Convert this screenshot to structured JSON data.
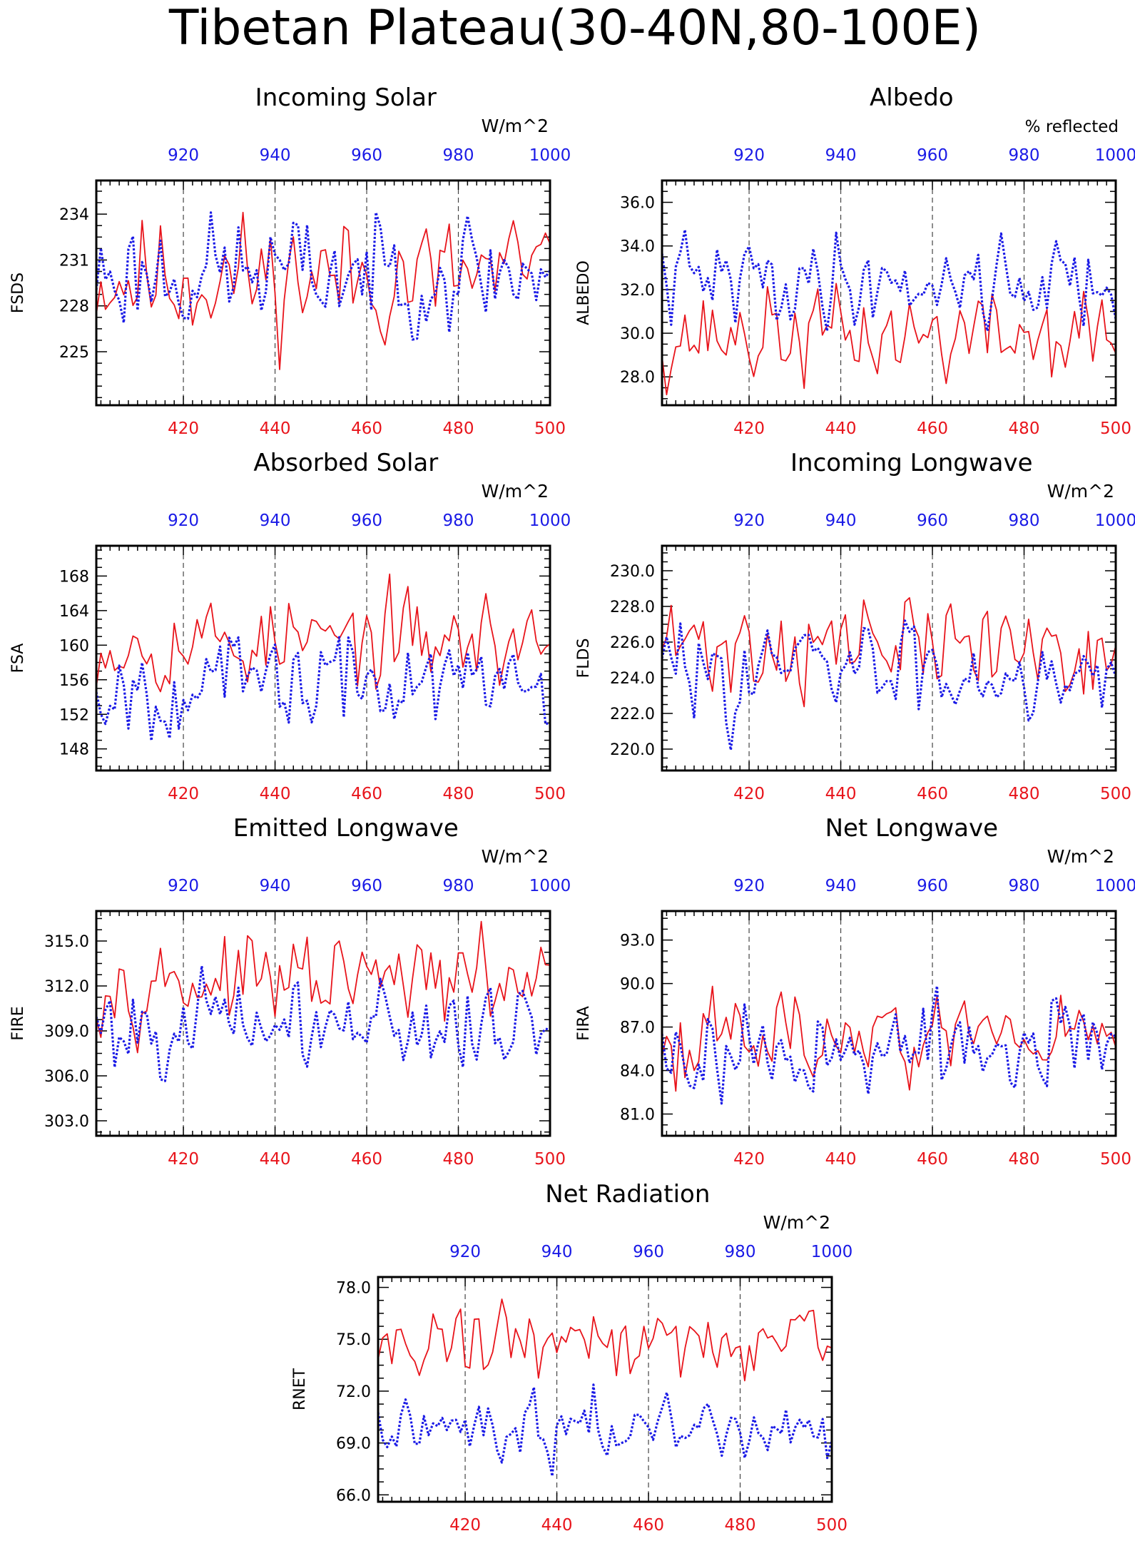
{
  "figure_title": "Tibetan Plateau(30-40N,80-100E)",
  "colors": {
    "red_series": "#e8141b",
    "blue_series": "#1a1ae6",
    "axis": "#000000"
  },
  "chart_data": [
    {
      "type": "line",
      "title": "Incoming Solar",
      "units": "W/m^2",
      "ylabel": "FSDS",
      "x_bottom": {
        "range": [
          401,
          500
        ],
        "ticks": [
          420,
          440,
          460,
          480,
          500
        ],
        "color": "red"
      },
      "x_top": {
        "range": [
          901,
          1000
        ],
        "ticks": [
          920,
          940,
          960,
          980,
          1000
        ],
        "color": "blue"
      },
      "ylim": [
        221.5,
        236.2
      ],
      "yticks": [
        225,
        228,
        231,
        234
      ],
      "ytick_labels": [
        "225",
        "228",
        "231",
        "234"
      ],
      "series": [
        {
          "color": "red",
          "style": "solid",
          "mean": 229.9,
          "amp": 2.6,
          "seed": 11,
          "lo": 223.0,
          "hi": 235.0
        },
        {
          "color": "blue",
          "style": "dotted",
          "mean": 230.2,
          "amp": 2.4,
          "seed": 23,
          "lo": 225.8,
          "hi": 235.3
        }
      ]
    },
    {
      "type": "line",
      "title": "Albedo",
      "units": "% reflected",
      "ylabel": "ALBEDO",
      "x_bottom": {
        "range": [
          401,
          500
        ],
        "ticks": [
          420,
          440,
          460,
          480,
          500
        ],
        "color": "red"
      },
      "x_top": {
        "range": [
          901,
          1000
        ],
        "ticks": [
          920,
          940,
          960,
          980,
          1000
        ],
        "color": "blue"
      },
      "ylim": [
        26.7,
        37.0
      ],
      "yticks": [
        28,
        30,
        32,
        34,
        36
      ],
      "ytick_labels": [
        "28.0",
        "30.0",
        "32.0",
        "34.0",
        "36.0"
      ],
      "series": [
        {
          "color": "red",
          "style": "solid",
          "mean": 29.9,
          "amp": 1.4,
          "seed": 37,
          "lo": 27.1,
          "hi": 32.6
        },
        {
          "color": "blue",
          "style": "dotted",
          "mean": 32.4,
          "amp": 1.3,
          "seed": 41,
          "lo": 30.1,
          "hi": 36.4
        }
      ]
    },
    {
      "type": "line",
      "title": "Absorbed Solar",
      "units": "W/m^2",
      "ylabel": "FSA",
      "x_bottom": {
        "range": [
          401,
          500
        ],
        "ticks": [
          420,
          440,
          460,
          480,
          500
        ],
        "color": "red"
      },
      "x_top": {
        "range": [
          901,
          1000
        ],
        "ticks": [
          920,
          940,
          960,
          980,
          1000
        ],
        "color": "blue"
      },
      "ylim": [
        145.5,
        171.5
      ],
      "yticks": [
        148,
        152,
        156,
        160,
        164,
        168
      ],
      "ytick_labels": [
        "148",
        "152",
        "156",
        "160",
        "164",
        "168"
      ],
      "series": [
        {
          "color": "red",
          "style": "solid",
          "mean": 160.5,
          "amp": 3.4,
          "seed": 53,
          "lo": 153.5,
          "hi": 170.0
        },
        {
          "color": "blue",
          "style": "dotted",
          "mean": 155.6,
          "amp": 3.6,
          "seed": 67,
          "lo": 147.3,
          "hi": 162.5
        }
      ]
    },
    {
      "type": "line",
      "title": "Incoming Longwave",
      "units": "W/m^2",
      "ylabel": "FLDS",
      "x_bottom": {
        "range": [
          401,
          500
        ],
        "ticks": [
          420,
          440,
          460,
          480,
          500
        ],
        "color": "red"
      },
      "x_top": {
        "range": [
          901,
          1000
        ],
        "ticks": [
          920,
          940,
          960,
          980,
          1000
        ],
        "color": "blue"
      },
      "ylim": [
        218.8,
        231.4
      ],
      "yticks": [
        220,
        222,
        224,
        226,
        228,
        230
      ],
      "ytick_labels": [
        "220.0",
        "222.0",
        "224.0",
        "226.0",
        "228.0",
        "230.0"
      ],
      "series": [
        {
          "color": "red",
          "style": "solid",
          "mean": 225.8,
          "amp": 1.8,
          "seed": 71,
          "lo": 219.5,
          "hi": 230.6
        },
        {
          "color": "blue",
          "style": "dotted",
          "mean": 224.5,
          "amp": 1.7,
          "seed": 83,
          "lo": 219.5,
          "hi": 227.8
        }
      ]
    },
    {
      "type": "line",
      "title": "Emitted Longwave",
      "units": "W/m^2",
      "ylabel": "FIRE",
      "x_bottom": {
        "range": [
          401,
          500
        ],
        "ticks": [
          420,
          440,
          460,
          480,
          500
        ],
        "color": "red"
      },
      "x_top": {
        "range": [
          901,
          1000
        ],
        "ticks": [
          920,
          940,
          960,
          980,
          1000
        ],
        "color": "blue"
      },
      "ylim": [
        302.0,
        317.0
      ],
      "yticks": [
        303,
        306,
        309,
        312,
        315
      ],
      "ytick_labels": [
        "303.0",
        "306.0",
        "309.0",
        "312.0",
        "315.0"
      ],
      "series": [
        {
          "color": "red",
          "style": "solid",
          "mean": 312.3,
          "amp": 1.8,
          "seed": 97,
          "lo": 307.3,
          "hi": 316.3
        },
        {
          "color": "blue",
          "style": "dotted",
          "mean": 309.4,
          "amp": 1.9,
          "seed": 101,
          "lo": 302.8,
          "hi": 314.8
        }
      ]
    },
    {
      "type": "line",
      "title": "Net Longwave",
      "units": "W/m^2",
      "ylabel": "FIRA",
      "x_bottom": {
        "range": [
          401,
          500
        ],
        "ticks": [
          420,
          440,
          460,
          480,
          500
        ],
        "color": "red"
      },
      "x_top": {
        "range": [
          901,
          1000
        ],
        "ticks": [
          920,
          940,
          960,
          980,
          1000
        ],
        "color": "blue"
      },
      "ylim": [
        79.5,
        95.0
      ],
      "yticks": [
        81,
        84,
        87,
        90,
        93
      ],
      "ytick_labels": [
        "81.0",
        "84.0",
        "87.0",
        "90.0",
        "93.0"
      ],
      "series": [
        {
          "color": "red",
          "style": "solid",
          "mean": 86.4,
          "amp": 1.9,
          "seed": 113,
          "lo": 82.2,
          "hi": 93.9
        },
        {
          "color": "blue",
          "style": "dotted",
          "mean": 85.4,
          "amp": 2.1,
          "seed": 127,
          "lo": 79.8,
          "hi": 90.6
        }
      ]
    },
    {
      "type": "line",
      "title": "Net Radiation",
      "units": "W/m^2",
      "ylabel": "RNET",
      "x_bottom": {
        "range": [
          401,
          500
        ],
        "ticks": [
          420,
          440,
          460,
          480,
          500
        ],
        "color": "red"
      },
      "x_top": {
        "range": [
          901,
          1000
        ],
        "ticks": [
          920,
          940,
          960,
          980,
          1000
        ],
        "color": "blue"
      },
      "ylim": [
        65.6,
        78.6
      ],
      "yticks": [
        66,
        69,
        72,
        75,
        78
      ],
      "ytick_labels": [
        "66.0",
        "69.0",
        "72.0",
        "75.0",
        "78.0"
      ],
      "series": [
        {
          "color": "red",
          "style": "solid",
          "mean": 74.9,
          "amp": 1.3,
          "seed": 131,
          "lo": 71.9,
          "hi": 77.7
        },
        {
          "color": "blue",
          "style": "dotted",
          "mean": 70.0,
          "amp": 1.2,
          "seed": 149,
          "lo": 66.2,
          "hi": 73.0
        }
      ]
    }
  ]
}
